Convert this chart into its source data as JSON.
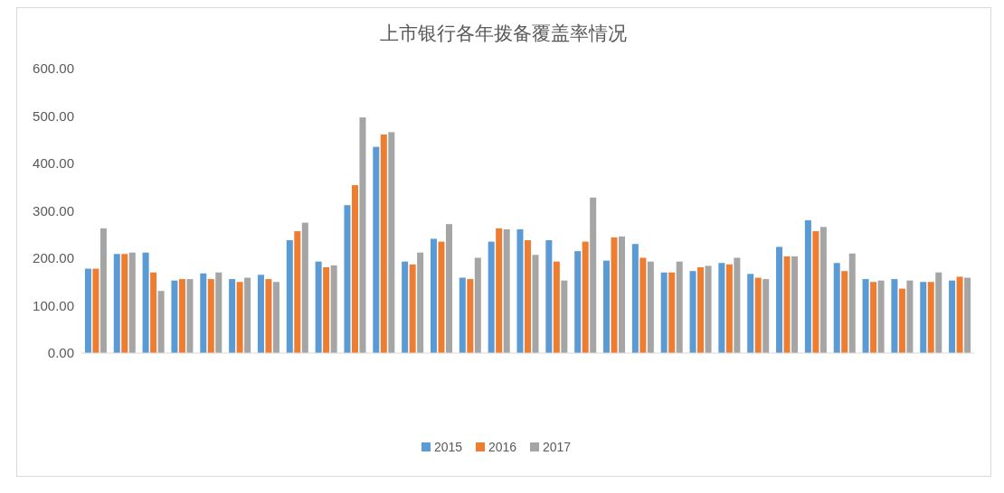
{
  "chart_data": {
    "type": "bar",
    "title": "上市银行各年拨备覆盖率情况",
    "categories": [
      null,
      null,
      null,
      null,
      null,
      null,
      null,
      null,
      null,
      null,
      null,
      null,
      null,
      null,
      null,
      null,
      null,
      null,
      null,
      null,
      null,
      null,
      null,
      null,
      null,
      null,
      null,
      null,
      null,
      null,
      null
    ],
    "series": [
      {
        "name": "2015",
        "color": "#5b9bd5",
        "values": [
          178,
          209,
          212,
          153,
          168,
          156,
          165,
          238,
          193,
          312,
          435,
          193,
          241,
          159,
          235,
          261,
          238,
          215,
          195,
          230,
          170,
          173,
          190,
          167,
          224,
          280,
          190,
          156,
          156,
          150,
          153
        ]
      },
      {
        "name": "2016",
        "color": "#ed7d31",
        "values": [
          178,
          209,
          170,
          156,
          156,
          150,
          156,
          257,
          181,
          354,
          461,
          187,
          235,
          156,
          263,
          238,
          193,
          235,
          244,
          201,
          170,
          181,
          187,
          159,
          204,
          257,
          173,
          150,
          136,
          150,
          161
        ]
      },
      {
        "name": "2017",
        "color": "#a5a5a5",
        "values": [
          263,
          212,
          131,
          156,
          170,
          159,
          150,
          275,
          185,
          497,
          466,
          212,
          272,
          201,
          261,
          207,
          153,
          328,
          246,
          193,
          193,
          184,
          201,
          156,
          204,
          266,
          210,
          153,
          153,
          170,
          159
        ]
      }
    ],
    "ylim": [
      0,
      600
    ],
    "yticks": [
      {
        "value": 0,
        "label": "0.00"
      },
      {
        "value": 100,
        "label": "100.00"
      },
      {
        "value": 200,
        "label": "200.00"
      },
      {
        "value": 300,
        "label": "300.00"
      },
      {
        "value": 400,
        "label": "400.00"
      },
      {
        "value": 500,
        "label": "500.00"
      },
      {
        "value": 600,
        "label": "600.00"
      }
    ],
    "legend": "bottom"
  }
}
